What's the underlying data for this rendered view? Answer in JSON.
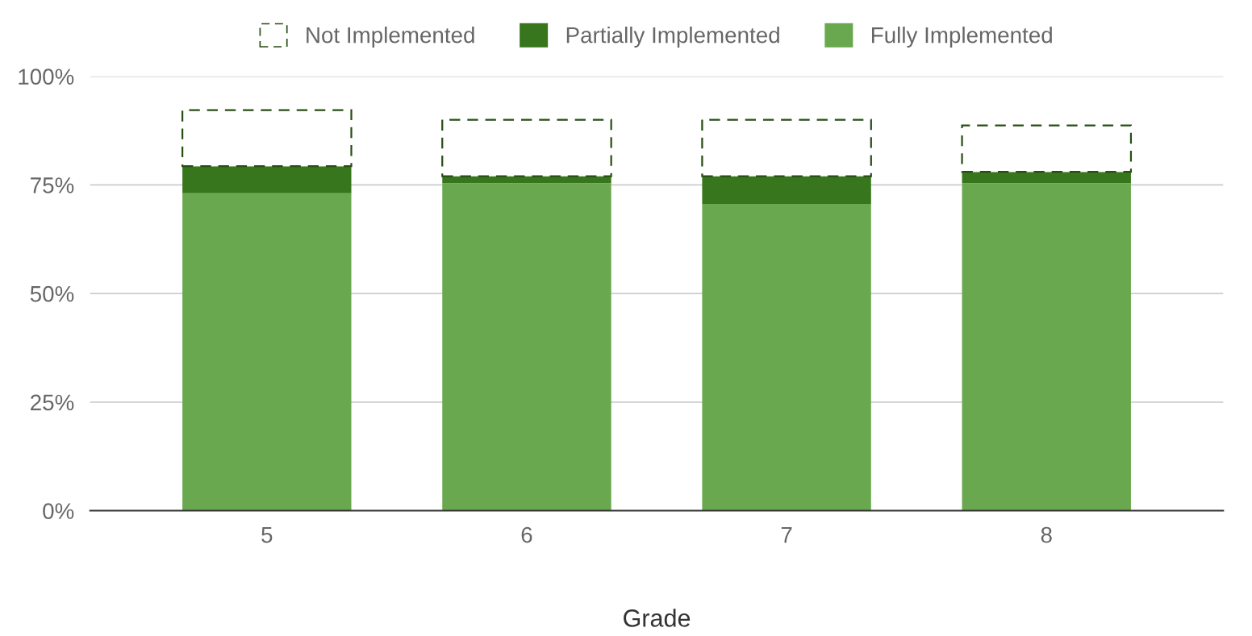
{
  "chart_data": {
    "type": "bar",
    "stacked": true,
    "xlabel": "Grade",
    "categories": [
      "5",
      "6",
      "7",
      "8"
    ],
    "series": [
      {
        "name": "Fully Implemented",
        "color": "#6aa84f",
        "values": [
          73.1,
          75.4,
          70.6,
          75.4
        ]
      },
      {
        "name": "Partially Implemented",
        "color": "#38761d",
        "values": [
          6.2,
          1.6,
          6.4,
          2.6
        ]
      },
      {
        "name": "Not Implemented",
        "color": "#ffffff",
        "line_style": "dashed",
        "values": [
          12.9,
          13.0,
          13.0,
          10.7
        ]
      }
    ],
    "ylim": [
      0,
      100
    ],
    "yticks": [
      {
        "value": 0,
        "label": "0%"
      },
      {
        "value": 25,
        "label": "25%"
      },
      {
        "value": 50,
        "label": "50%"
      },
      {
        "value": 75,
        "label": "75%"
      },
      {
        "value": 100,
        "label": "100%"
      }
    ],
    "grid": "y",
    "legend": "top"
  }
}
